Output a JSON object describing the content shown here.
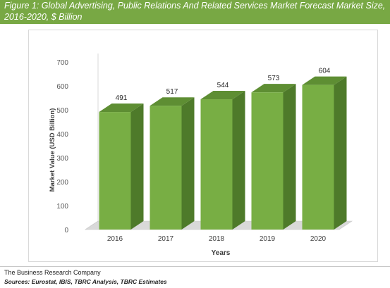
{
  "header": {
    "title": "Figure 1: Global Advertising, Public Relations And Related Services Market Forecast Market Size, 2016-2020, $ Billion"
  },
  "footer": {
    "company": "The Business Research Company",
    "sources": "Sources: Eurostat, IBIS, TBRC Analysis, TBRC Estimates"
  },
  "colors": {
    "title_band": "#78a844",
    "bar_front": "#78ae44",
    "bar_side": "#4e7a2a",
    "bar_top": "#5e8e33",
    "floor": "#d9d9d9"
  },
  "chart_data": {
    "type": "bar",
    "categories": [
      "2016",
      "2017",
      "2018",
      "2019",
      "2020"
    ],
    "values": [
      491,
      517,
      544,
      573,
      604
    ],
    "xlabel": "Years",
    "ylabel": "Market Value (USD Billion)",
    "ylim": [
      0,
      700
    ],
    "yticks": [
      "0",
      "100",
      "200",
      "300",
      "400",
      "500",
      "600",
      "700"
    ],
    "grid": false,
    "style": "3d-column"
  }
}
